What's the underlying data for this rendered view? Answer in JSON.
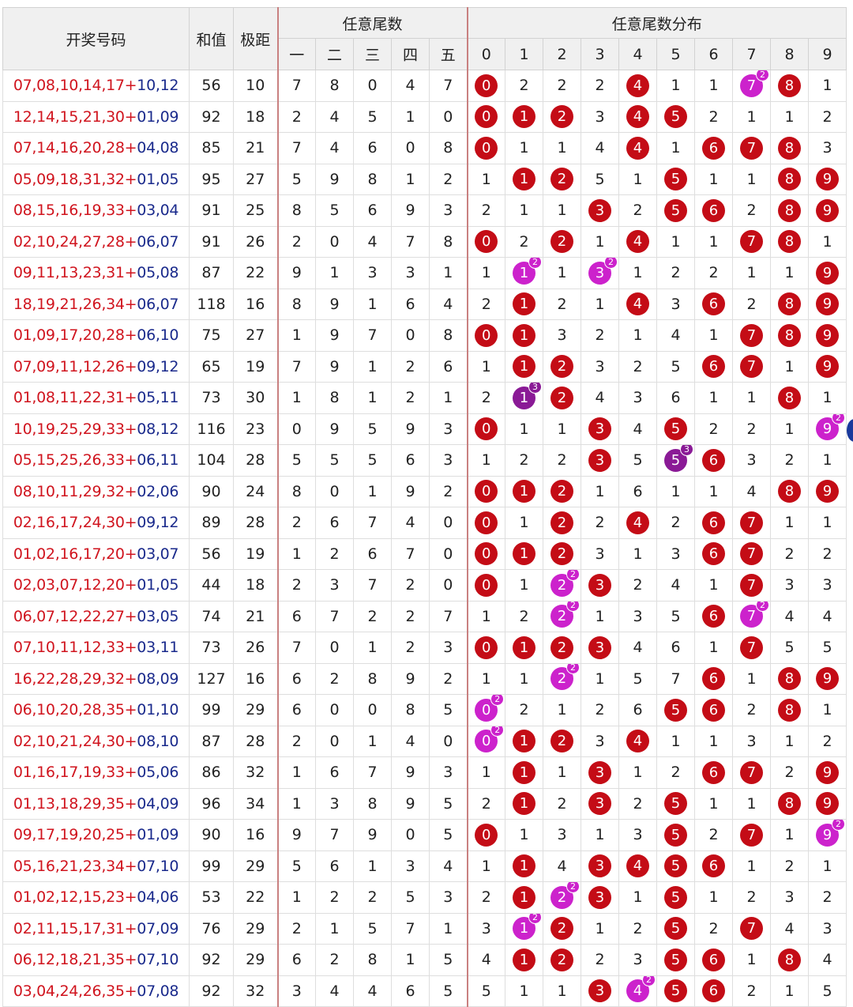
{
  "chart_data": {
    "type": "table",
    "headers": {
      "draw": "开奖号码",
      "sum": "和值",
      "span": "极距",
      "tail_group": "任意尾数",
      "tail_positions": [
        "一",
        "二",
        "三",
        "四",
        "五"
      ],
      "dist_group": "任意尾数分布",
      "dist_digits": [
        "0",
        "1",
        "2",
        "3",
        "4",
        "5",
        "6",
        "7",
        "8",
        "9"
      ]
    },
    "ball_colors": {
      "single": "#c40c16",
      "double": "#cc22cc",
      "triple": "#8a1a96"
    },
    "rows": [
      {
        "front": "07,08,10,14,17",
        "back": "10,12",
        "sum": "56",
        "span": "10",
        "tails": [
          "7",
          "8",
          "0",
          "4",
          "7"
        ],
        "dist": [
          "0",
          "2",
          "2",
          "2",
          "4",
          "1",
          "1",
          "7",
          "8",
          "1"
        ],
        "counts": [
          1,
          0,
          0,
          0,
          1,
          0,
          0,
          2,
          1,
          0
        ]
      },
      {
        "front": "12,14,15,21,30",
        "back": "01,09",
        "sum": "92",
        "span": "18",
        "tails": [
          "2",
          "4",
          "5",
          "1",
          "0"
        ],
        "dist": [
          "0",
          "1",
          "2",
          "3",
          "4",
          "5",
          "2",
          "1",
          "1",
          "2"
        ],
        "counts": [
          1,
          1,
          1,
          0,
          1,
          1,
          0,
          0,
          0,
          0
        ]
      },
      {
        "front": "07,14,16,20,28",
        "back": "04,08",
        "sum": "85",
        "span": "21",
        "tails": [
          "7",
          "4",
          "6",
          "0",
          "8"
        ],
        "dist": [
          "0",
          "1",
          "1",
          "4",
          "4",
          "1",
          "6",
          "7",
          "8",
          "3"
        ],
        "counts": [
          1,
          0,
          0,
          0,
          1,
          0,
          1,
          1,
          1,
          0
        ]
      },
      {
        "front": "05,09,18,31,32",
        "back": "01,05",
        "sum": "95",
        "span": "27",
        "tails": [
          "5",
          "9",
          "8",
          "1",
          "2"
        ],
        "dist": [
          "1",
          "1",
          "2",
          "5",
          "1",
          "5",
          "1",
          "1",
          "8",
          "9"
        ],
        "counts": [
          0,
          1,
          1,
          0,
          0,
          1,
          0,
          0,
          1,
          1
        ]
      },
      {
        "front": "08,15,16,19,33",
        "back": "03,04",
        "sum": "91",
        "span": "25",
        "tails": [
          "8",
          "5",
          "6",
          "9",
          "3"
        ],
        "dist": [
          "2",
          "1",
          "1",
          "3",
          "2",
          "5",
          "6",
          "2",
          "8",
          "9"
        ],
        "counts": [
          0,
          0,
          0,
          1,
          0,
          1,
          1,
          0,
          1,
          1
        ]
      },
      {
        "front": "02,10,24,27,28",
        "back": "06,07",
        "sum": "91",
        "span": "26",
        "tails": [
          "2",
          "0",
          "4",
          "7",
          "8"
        ],
        "dist": [
          "0",
          "2",
          "2",
          "1",
          "4",
          "1",
          "1",
          "7",
          "8",
          "1"
        ],
        "counts": [
          1,
          0,
          1,
          0,
          1,
          0,
          0,
          1,
          1,
          0
        ]
      },
      {
        "front": "09,11,13,23,31",
        "back": "05,08",
        "sum": "87",
        "span": "22",
        "tails": [
          "9",
          "1",
          "3",
          "3",
          "1"
        ],
        "dist": [
          "1",
          "1",
          "1",
          "3",
          "1",
          "2",
          "2",
          "1",
          "1",
          "9"
        ],
        "counts": [
          0,
          2,
          0,
          2,
          0,
          0,
          0,
          0,
          0,
          1
        ]
      },
      {
        "front": "18,19,21,26,34",
        "back": "06,07",
        "sum": "118",
        "span": "16",
        "tails": [
          "8",
          "9",
          "1",
          "6",
          "4"
        ],
        "dist": [
          "2",
          "1",
          "2",
          "1",
          "4",
          "3",
          "6",
          "2",
          "8",
          "9"
        ],
        "counts": [
          0,
          1,
          0,
          0,
          1,
          0,
          1,
          0,
          1,
          1
        ]
      },
      {
        "front": "01,09,17,20,28",
        "back": "06,10",
        "sum": "75",
        "span": "27",
        "tails": [
          "1",
          "9",
          "7",
          "0",
          "8"
        ],
        "dist": [
          "0",
          "1",
          "3",
          "2",
          "1",
          "4",
          "1",
          "7",
          "8",
          "9"
        ],
        "counts": [
          1,
          1,
          0,
          0,
          0,
          0,
          0,
          1,
          1,
          1
        ]
      },
      {
        "front": "07,09,11,12,26",
        "back": "09,12",
        "sum": "65",
        "span": "19",
        "tails": [
          "7",
          "9",
          "1",
          "2",
          "6"
        ],
        "dist": [
          "1",
          "1",
          "2",
          "3",
          "2",
          "5",
          "6",
          "7",
          "1",
          "9"
        ],
        "counts": [
          0,
          1,
          1,
          0,
          0,
          0,
          1,
          1,
          0,
          1
        ]
      },
      {
        "front": "01,08,11,22,31",
        "back": "05,11",
        "sum": "73",
        "span": "30",
        "tails": [
          "1",
          "8",
          "1",
          "2",
          "1"
        ],
        "dist": [
          "2",
          "1",
          "2",
          "4",
          "3",
          "6",
          "1",
          "1",
          "8",
          "1"
        ],
        "counts": [
          0,
          3,
          1,
          0,
          0,
          0,
          0,
          0,
          1,
          0
        ]
      },
      {
        "front": "10,19,25,29,33",
        "back": "08,12",
        "sum": "116",
        "span": "23",
        "tails": [
          "0",
          "9",
          "5",
          "9",
          "3"
        ],
        "dist": [
          "0",
          "1",
          "1",
          "3",
          "4",
          "5",
          "2",
          "2",
          "1",
          "9"
        ],
        "counts": [
          1,
          0,
          0,
          1,
          0,
          1,
          0,
          0,
          0,
          2
        ]
      },
      {
        "front": "05,15,25,26,33",
        "back": "06,11",
        "sum": "104",
        "span": "28",
        "tails": [
          "5",
          "5",
          "5",
          "6",
          "3"
        ],
        "dist": [
          "1",
          "2",
          "2",
          "3",
          "5",
          "5",
          "6",
          "3",
          "2",
          "1"
        ],
        "counts": [
          0,
          0,
          0,
          1,
          0,
          3,
          1,
          0,
          0,
          0
        ]
      },
      {
        "front": "08,10,11,29,32",
        "back": "02,06",
        "sum": "90",
        "span": "24",
        "tails": [
          "8",
          "0",
          "1",
          "9",
          "2"
        ],
        "dist": [
          "0",
          "1",
          "2",
          "1",
          "6",
          "1",
          "1",
          "4",
          "8",
          "9"
        ],
        "counts": [
          1,
          1,
          1,
          0,
          0,
          0,
          0,
          0,
          1,
          1
        ]
      },
      {
        "front": "02,16,17,24,30",
        "back": "09,12",
        "sum": "89",
        "span": "28",
        "tails": [
          "2",
          "6",
          "7",
          "4",
          "0"
        ],
        "dist": [
          "0",
          "1",
          "2",
          "2",
          "4",
          "2",
          "6",
          "7",
          "1",
          "1"
        ],
        "counts": [
          1,
          0,
          1,
          0,
          1,
          0,
          1,
          1,
          0,
          0
        ]
      },
      {
        "front": "01,02,16,17,20",
        "back": "03,07",
        "sum": "56",
        "span": "19",
        "tails": [
          "1",
          "2",
          "6",
          "7",
          "0"
        ],
        "dist": [
          "0",
          "1",
          "2",
          "3",
          "1",
          "3",
          "6",
          "7",
          "2",
          "2"
        ],
        "counts": [
          1,
          1,
          1,
          0,
          0,
          0,
          1,
          1,
          0,
          0
        ]
      },
      {
        "front": "02,03,07,12,20",
        "back": "01,05",
        "sum": "44",
        "span": "18",
        "tails": [
          "2",
          "3",
          "7",
          "2",
          "0"
        ],
        "dist": [
          "0",
          "1",
          "2",
          "3",
          "2",
          "4",
          "1",
          "7",
          "3",
          "3"
        ],
        "counts": [
          1,
          0,
          2,
          1,
          0,
          0,
          0,
          1,
          0,
          0
        ]
      },
      {
        "front": "06,07,12,22,27",
        "back": "03,05",
        "sum": "74",
        "span": "21",
        "tails": [
          "6",
          "7",
          "2",
          "2",
          "7"
        ],
        "dist": [
          "1",
          "2",
          "2",
          "1",
          "3",
          "5",
          "6",
          "7",
          "4",
          "4"
        ],
        "counts": [
          0,
          0,
          2,
          0,
          0,
          0,
          1,
          2,
          0,
          0
        ]
      },
      {
        "front": "07,10,11,12,33",
        "back": "03,11",
        "sum": "73",
        "span": "26",
        "tails": [
          "7",
          "0",
          "1",
          "2",
          "3"
        ],
        "dist": [
          "0",
          "1",
          "2",
          "3",
          "4",
          "6",
          "1",
          "7",
          "5",
          "5"
        ],
        "counts": [
          1,
          1,
          1,
          1,
          0,
          0,
          0,
          1,
          0,
          0
        ]
      },
      {
        "front": "16,22,28,29,32",
        "back": "08,09",
        "sum": "127",
        "span": "16",
        "tails": [
          "6",
          "2",
          "8",
          "9",
          "2"
        ],
        "dist": [
          "1",
          "1",
          "2",
          "1",
          "5",
          "7",
          "6",
          "1",
          "8",
          "9"
        ],
        "counts": [
          0,
          0,
          2,
          0,
          0,
          0,
          1,
          0,
          1,
          1
        ]
      },
      {
        "front": "06,10,20,28,35",
        "back": "01,10",
        "sum": "99",
        "span": "29",
        "tails": [
          "6",
          "0",
          "0",
          "8",
          "5"
        ],
        "dist": [
          "0",
          "2",
          "1",
          "2",
          "6",
          "5",
          "6",
          "2",
          "8",
          "1"
        ],
        "counts": [
          2,
          0,
          0,
          0,
          0,
          1,
          1,
          0,
          1,
          0
        ]
      },
      {
        "front": "02,10,21,24,30",
        "back": "08,10",
        "sum": "87",
        "span": "28",
        "tails": [
          "2",
          "0",
          "1",
          "4",
          "0"
        ],
        "dist": [
          "0",
          "1",
          "2",
          "3",
          "4",
          "1",
          "1",
          "3",
          "1",
          "2"
        ],
        "counts": [
          2,
          1,
          1,
          0,
          1,
          0,
          0,
          0,
          0,
          0
        ]
      },
      {
        "front": "01,16,17,19,33",
        "back": "05,06",
        "sum": "86",
        "span": "32",
        "tails": [
          "1",
          "6",
          "7",
          "9",
          "3"
        ],
        "dist": [
          "1",
          "1",
          "1",
          "3",
          "1",
          "2",
          "6",
          "7",
          "2",
          "9"
        ],
        "counts": [
          0,
          1,
          0,
          1,
          0,
          0,
          1,
          1,
          0,
          1
        ]
      },
      {
        "front": "01,13,18,29,35",
        "back": "04,09",
        "sum": "96",
        "span": "34",
        "tails": [
          "1",
          "3",
          "8",
          "9",
          "5"
        ],
        "dist": [
          "2",
          "1",
          "2",
          "3",
          "2",
          "5",
          "1",
          "1",
          "8",
          "9"
        ],
        "counts": [
          0,
          1,
          0,
          1,
          0,
          1,
          0,
          0,
          1,
          1
        ]
      },
      {
        "front": "09,17,19,20,25",
        "back": "01,09",
        "sum": "90",
        "span": "16",
        "tails": [
          "9",
          "7",
          "9",
          "0",
          "5"
        ],
        "dist": [
          "0",
          "1",
          "3",
          "1",
          "3",
          "5",
          "2",
          "7",
          "1",
          "9"
        ],
        "counts": [
          1,
          0,
          0,
          0,
          0,
          1,
          0,
          1,
          0,
          2
        ]
      },
      {
        "front": "05,16,21,23,34",
        "back": "07,10",
        "sum": "99",
        "span": "29",
        "tails": [
          "5",
          "6",
          "1",
          "3",
          "4"
        ],
        "dist": [
          "1",
          "1",
          "4",
          "3",
          "4",
          "5",
          "6",
          "1",
          "2",
          "1"
        ],
        "counts": [
          0,
          1,
          0,
          1,
          1,
          1,
          1,
          0,
          0,
          0
        ]
      },
      {
        "front": "01,02,12,15,23",
        "back": "04,06",
        "sum": "53",
        "span": "22",
        "tails": [
          "1",
          "2",
          "2",
          "5",
          "3"
        ],
        "dist": [
          "2",
          "1",
          "2",
          "3",
          "1",
          "5",
          "1",
          "2",
          "3",
          "2"
        ],
        "counts": [
          0,
          1,
          2,
          1,
          0,
          1,
          0,
          0,
          0,
          0
        ]
      },
      {
        "front": "02,11,15,17,31",
        "back": "07,09",
        "sum": "76",
        "span": "29",
        "tails": [
          "2",
          "1",
          "5",
          "7",
          "1"
        ],
        "dist": [
          "3",
          "1",
          "2",
          "1",
          "2",
          "5",
          "2",
          "7",
          "4",
          "3"
        ],
        "counts": [
          0,
          2,
          1,
          0,
          0,
          1,
          0,
          1,
          0,
          0
        ]
      },
      {
        "front": "06,12,18,21,35",
        "back": "07,10",
        "sum": "92",
        "span": "29",
        "tails": [
          "6",
          "2",
          "8",
          "1",
          "5"
        ],
        "dist": [
          "4",
          "1",
          "2",
          "2",
          "3",
          "5",
          "6",
          "1",
          "8",
          "4"
        ],
        "counts": [
          0,
          1,
          1,
          0,
          0,
          1,
          1,
          0,
          1,
          0
        ]
      },
      {
        "front": "03,04,24,26,35",
        "back": "07,08",
        "sum": "92",
        "span": "32",
        "tails": [
          "3",
          "4",
          "4",
          "6",
          "5"
        ],
        "dist": [
          "5",
          "1",
          "1",
          "3",
          "4",
          "5",
          "6",
          "2",
          "1",
          "5"
        ],
        "counts": [
          0,
          0,
          0,
          1,
          2,
          1,
          1,
          0,
          0,
          0
        ]
      }
    ]
  }
}
